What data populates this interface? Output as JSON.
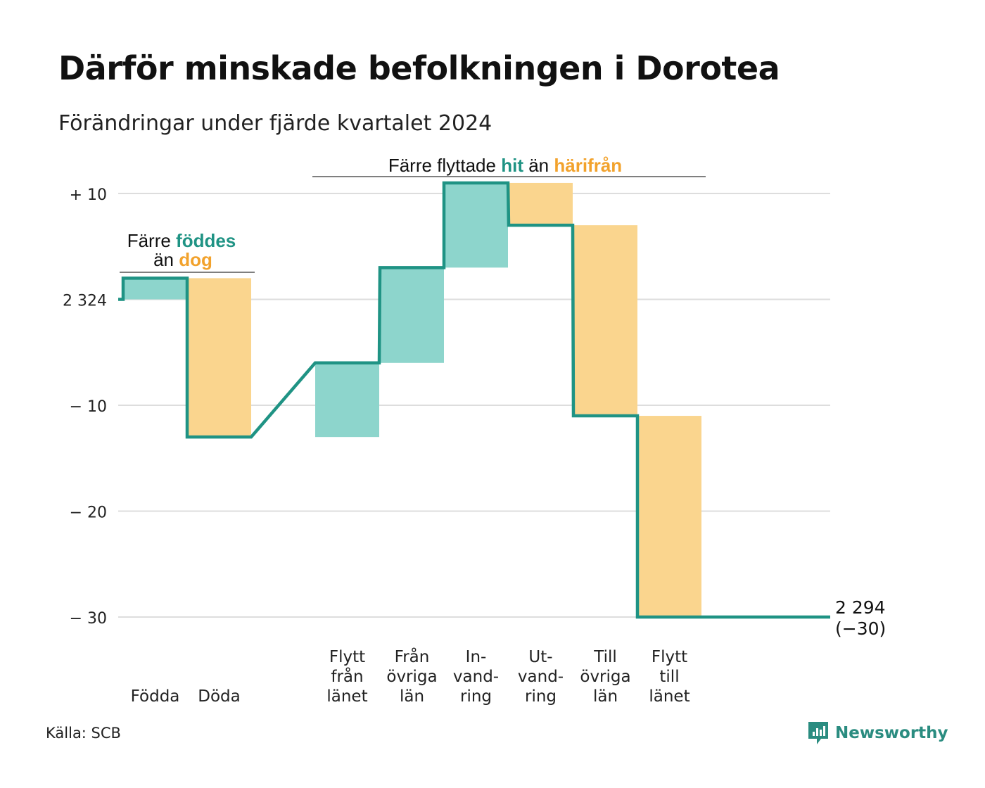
{
  "title": "Därför minskade befolkningen i Dorotea",
  "subtitle": "Förändringar under fjärde kvartalet 2024",
  "source": "Källa: SCB",
  "brand": "Newsworthy",
  "colors": {
    "line": "#1f9384",
    "positive": "#8dd5cc",
    "negative": "#fad58e",
    "accent_teal": "#1f9384",
    "accent_orange": "#f2a22c",
    "grid": "#dddddd"
  },
  "chart_data": {
    "type": "waterfall",
    "start_value": 2324,
    "start_label": "2 324",
    "end_label": "2 294",
    "end_change_label": "(−30)",
    "ylim": [
      -30,
      10
    ],
    "y_ticks": [
      {
        "value": 10,
        "label": "+ 10"
      },
      {
        "value": 0,
        "label": "2 324"
      },
      {
        "value": -10,
        "label": "− 10"
      },
      {
        "value": -20,
        "label": "− 20"
      },
      {
        "value": -30,
        "label": "− 30"
      }
    ],
    "grid": true,
    "steps": [
      {
        "label_lines": [
          "Födda"
        ],
        "value": 2
      },
      {
        "label_lines": [
          "Döda"
        ],
        "value": -15
      },
      {
        "label_lines": [
          "Flytt",
          "från",
          "länet"
        ],
        "value": 7
      },
      {
        "label_lines": [
          "Från",
          "övriga",
          "län"
        ],
        "value": 9
      },
      {
        "label_lines": [
          "In-",
          "vand-",
          "ring"
        ],
        "value": 8
      },
      {
        "label_lines": [
          "Ut-",
          "vand-",
          "ring"
        ],
        "value": -4
      },
      {
        "label_lines": [
          "Till",
          "övriga",
          "län"
        ],
        "value": -18
      },
      {
        "label_lines": [
          "Flytt",
          "till",
          "länet"
        ],
        "value": -19
      }
    ],
    "annotations": {
      "births": {
        "line1_a": "Färre ",
        "line1_b": "föddes",
        "line2_a": "än ",
        "line2_b": "dog"
      },
      "migration": {
        "a": "Färre flyttade ",
        "b": "hit",
        "c": " än ",
        "d": "härifrån"
      }
    }
  }
}
